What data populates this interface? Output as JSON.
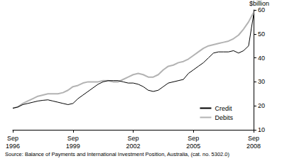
{
  "chart_data": {
    "type": "line",
    "ylabel": "$billion",
    "source": "Source: Balance of Payments and International Investment Position, Australia, (cat. no. 5302.0)",
    "categories": [
      "Sep 1996",
      null,
      null,
      null,
      null,
      null,
      null,
      null,
      null,
      null,
      null,
      null,
      "Sep 1999",
      null,
      null,
      null,
      null,
      null,
      null,
      null,
      null,
      null,
      null,
      null,
      "Sep 2002",
      null,
      null,
      null,
      null,
      null,
      null,
      null,
      null,
      null,
      null,
      null,
      "Sep 2005",
      null,
      null,
      null,
      null,
      null,
      null,
      null,
      null,
      null,
      null,
      null,
      "Sep 2008"
    ],
    "series": [
      {
        "name": "Credit",
        "color": "#000000",
        "values": [
          19,
          19.5,
          20.5,
          21,
          21.5,
          22,
          22.3,
          22.5,
          22,
          21.5,
          21,
          20.5,
          21,
          23,
          24.5,
          26,
          27.5,
          29,
          30,
          30.5,
          30.5,
          30.5,
          30,
          29.5,
          29.5,
          29,
          28,
          26.5,
          26,
          26.5,
          28,
          29.5,
          30,
          30.5,
          31,
          33.5,
          35,
          36.5,
          38,
          40,
          42,
          42.5,
          42.5,
          42.5,
          43,
          42,
          43,
          45,
          58
        ]
      },
      {
        "name": "Debits",
        "color": "#b3b3b3",
        "values": [
          19,
          19.5,
          21,
          22,
          23,
          24,
          24.5,
          25,
          25,
          25,
          25.5,
          26.5,
          28,
          28.5,
          29.5,
          30,
          30,
          30,
          30.5,
          30.5,
          30,
          30,
          31,
          32,
          33,
          33.5,
          33,
          32,
          32,
          33,
          35,
          36.5,
          37,
          38,
          38.5,
          39.5,
          41,
          42.5,
          44,
          45,
          45.5,
          46,
          46.5,
          47,
          48,
          49.5,
          52,
          55,
          59
        ]
      }
    ],
    "ylim": [
      10,
      60
    ],
    "yticks": [
      10,
      20,
      30,
      40,
      50,
      60
    ],
    "grid": false,
    "legend": "lower right"
  }
}
